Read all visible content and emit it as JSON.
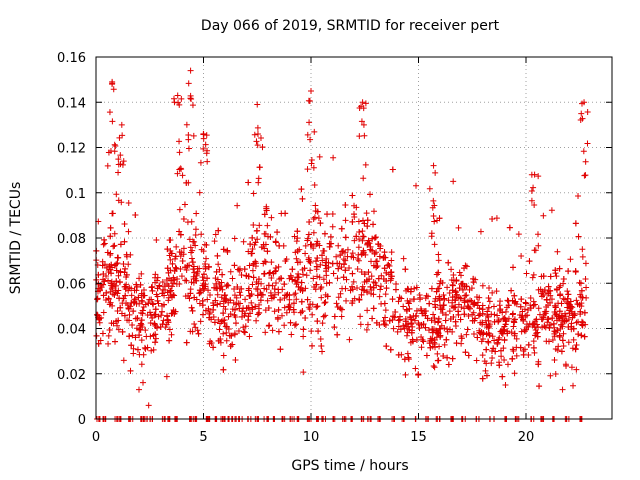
{
  "chart_data": {
    "type": "scatter",
    "title": "Day 066 of 2019, SRMTID for receiver pert",
    "xlabel": "GPS time / hours",
    "ylabel": "SRMTID / TECUs",
    "xlim": [
      0,
      24
    ],
    "ylim": [
      0,
      0.16
    ],
    "xticks": [
      0,
      5,
      10,
      15,
      20
    ],
    "xtick_labels": [
      "0",
      "5",
      "10",
      "15",
      "20"
    ],
    "yticks": [
      0,
      0.02,
      0.04,
      0.06,
      0.08,
      0.1,
      0.12,
      0.14,
      0.16
    ],
    "ytick_labels": [
      "0",
      "0.02",
      "0.04",
      "0.06",
      "0.08",
      "0.1",
      "0.12",
      "0.14",
      "0.16"
    ],
    "grid": true,
    "marker": "plus",
    "color": "#e00000",
    "series": [
      {
        "name": "SRMTID",
        "x_range": [
          0,
          22.8
        ],
        "n_points": 2400,
        "zero_values_near_x": [
          0.0,
          0.3,
          0.8,
          1.0,
          1.5,
          2.0,
          2.2,
          2.5,
          3.0,
          3.3,
          3.6,
          4.3,
          4.5,
          5.0,
          5.2,
          5.5,
          5.8,
          6.0,
          6.3,
          6.6,
          7.0,
          7.4,
          7.8,
          8.1,
          8.6,
          9.0,
          9.3,
          9.8,
          10.2,
          10.5,
          11.0,
          11.4,
          11.8,
          12.3,
          12.6,
          13.1,
          13.7,
          14.2,
          14.8,
          15.3,
          15.8,
          16.4,
          17.0,
          17.6,
          18.3,
          18.9,
          19.5,
          20.2,
          20.6,
          21.2,
          21.8,
          22.4
        ],
        "envelope": [
          {
            "x": 0,
            "center": 0.055,
            "spread": 0.018
          },
          {
            "x": 1,
            "center": 0.065,
            "spread": 0.025
          },
          {
            "x": 2,
            "center": 0.045,
            "spread": 0.018
          },
          {
            "x": 3,
            "center": 0.05,
            "spread": 0.02
          },
          {
            "x": 4,
            "center": 0.07,
            "spread": 0.028
          },
          {
            "x": 5,
            "center": 0.06,
            "spread": 0.02
          },
          {
            "x": 6,
            "center": 0.05,
            "spread": 0.02
          },
          {
            "x": 7,
            "center": 0.055,
            "spread": 0.02
          },
          {
            "x": 8,
            "center": 0.065,
            "spread": 0.025
          },
          {
            "x": 9,
            "center": 0.055,
            "spread": 0.02
          },
          {
            "x": 10,
            "center": 0.07,
            "spread": 0.028
          },
          {
            "x": 11,
            "center": 0.06,
            "spread": 0.022
          },
          {
            "x": 12,
            "center": 0.07,
            "spread": 0.025
          },
          {
            "x": 13,
            "center": 0.065,
            "spread": 0.022
          },
          {
            "x": 14,
            "center": 0.05,
            "spread": 0.018
          },
          {
            "x": 15,
            "center": 0.04,
            "spread": 0.015
          },
          {
            "x": 16,
            "center": 0.045,
            "spread": 0.017
          },
          {
            "x": 17,
            "center": 0.055,
            "spread": 0.02
          },
          {
            "x": 18,
            "center": 0.04,
            "spread": 0.016
          },
          {
            "x": 19,
            "center": 0.038,
            "spread": 0.016
          },
          {
            "x": 20,
            "center": 0.045,
            "spread": 0.02
          },
          {
            "x": 21,
            "center": 0.05,
            "spread": 0.018
          },
          {
            "x": 22,
            "center": 0.045,
            "spread": 0.02
          },
          {
            "x": 22.8,
            "center": 0.055,
            "spread": 0.025
          }
        ],
        "peaks": [
          {
            "x": 0.75,
            "y": 0.149
          },
          {
            "x": 1.2,
            "y": 0.13
          },
          {
            "x": 3.8,
            "y": 0.143
          },
          {
            "x": 4.4,
            "y": 0.154
          },
          {
            "x": 5.0,
            "y": 0.126
          },
          {
            "x": 7.5,
            "y": 0.139
          },
          {
            "x": 10.0,
            "y": 0.145
          },
          {
            "x": 12.4,
            "y": 0.14
          },
          {
            "x": 15.7,
            "y": 0.112
          },
          {
            "x": 20.4,
            "y": 0.108
          },
          {
            "x": 22.7,
            "y": 0.14
          }
        ],
        "low_outliers": [
          {
            "x": 2.45,
            "y": 0.006
          },
          {
            "x": 2.0,
            "y": 0.013
          },
          {
            "x": 21.7,
            "y": 0.013
          }
        ]
      }
    ]
  }
}
